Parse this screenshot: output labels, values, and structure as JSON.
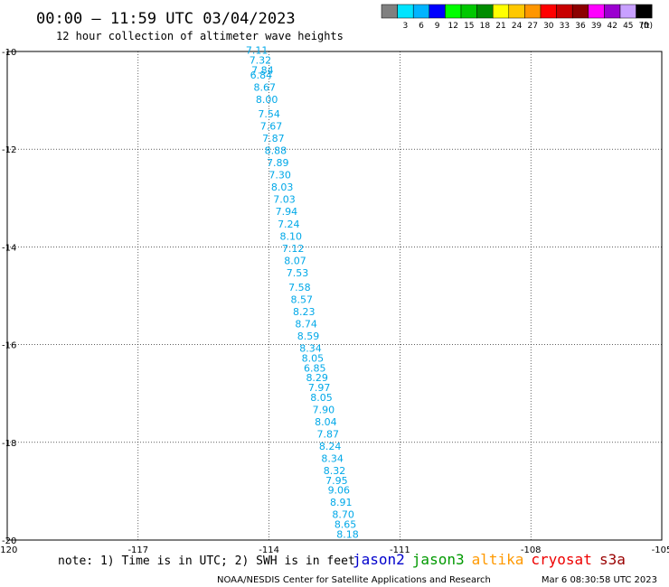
{
  "header": {
    "title": "00:00 – 11:59 UTC 03/04/2023",
    "subtitle": "12 hour collection of altimeter wave heights"
  },
  "colorbar": {
    "unit": "(ft)",
    "segments": [
      {
        "label": "",
        "color": "#808080"
      },
      {
        "label": "3",
        "color": "#00e4ff"
      },
      {
        "label": "6",
        "color": "#00b4ff"
      },
      {
        "label": "9",
        "color": "#0000ff"
      },
      {
        "label": "12",
        "color": "#00ff00"
      },
      {
        "label": "15",
        "color": "#00c800"
      },
      {
        "label": "18",
        "color": "#008c00"
      },
      {
        "label": "21",
        "color": "#ffff00"
      },
      {
        "label": "24",
        "color": "#ffc800"
      },
      {
        "label": "27",
        "color": "#ff9600"
      },
      {
        "label": "30",
        "color": "#ff0000"
      },
      {
        "label": "33",
        "color": "#c80000"
      },
      {
        "label": "36",
        "color": "#8c0000"
      },
      {
        "label": "39",
        "color": "#ff00ff"
      },
      {
        "label": "42",
        "color": "#9b00d0"
      },
      {
        "label": "45",
        "color": "#c8a0ff"
      },
      {
        "label": "70",
        "color": "#000000"
      }
    ]
  },
  "footer": {
    "note": "note: 1) Time is in UTC; 2) SWH is in feet",
    "credit": "NOAA/NESDIS Center for Satellite Applications and Research",
    "timestamp": "Mar  6 08:30:58 UTC 2023",
    "satellites": [
      {
        "name": "jason2",
        "color": "#0000cc"
      },
      {
        "name": "jason3",
        "color": "#009900"
      },
      {
        "name": "altika",
        "color": "#ff9900"
      },
      {
        "name": "cryosat",
        "color": "#ee0000"
      },
      {
        "name": "s3a",
        "color": "#990000"
      }
    ]
  },
  "chart_data": {
    "type": "scatter",
    "title": "00:00 – 11:59 UTC 03/04/2023",
    "subtitle": "12 hour collection of altimeter wave heights",
    "xlim": [
      -120,
      -105
    ],
    "ylim": [
      -20,
      -10
    ],
    "xticks": [
      {
        "value": -120,
        "label": "-120"
      },
      {
        "value": -117,
        "label": "-117"
      },
      {
        "value": -114,
        "label": "-114"
      },
      {
        "value": -111,
        "label": "-111"
      },
      {
        "value": -108,
        "label": "-108"
      },
      {
        "value": -105,
        "label": "-105"
      }
    ],
    "yticks": [
      {
        "value": -10,
        "label": "-10"
      },
      {
        "value": -12,
        "label": "-12"
      },
      {
        "value": -14,
        "label": "-14"
      },
      {
        "value": -16,
        "label": "-16"
      },
      {
        "value": -18,
        "label": "-18"
      },
      {
        "value": -20,
        "label": "-20"
      }
    ],
    "grid": true,
    "legend": "bottom",
    "colors": {
      "swh": "#00a8e8",
      "swh_high": "#0000cc"
    },
    "tracks": [
      {
        "sat": "s3a",
        "color": "#c800c8",
        "points": [
          [
            -114.28,
            -10.05,
            "7.11"
          ],
          [
            -114.2,
            -10.25,
            "7.32"
          ],
          [
            -114.15,
            -10.45,
            "7.84"
          ],
          [
            -114.18,
            -10.55,
            "6.84"
          ],
          [
            -114.1,
            -10.8,
            "8.67"
          ],
          [
            -114.05,
            -11.05,
            "8.00"
          ],
          [
            -114.0,
            -11.35,
            "7.54"
          ],
          [
            -113.95,
            -11.6,
            "7.67"
          ],
          [
            -113.9,
            -11.85,
            "7.87"
          ],
          [
            -113.85,
            -12.1,
            "8.88"
          ],
          [
            -113.8,
            -12.35,
            "7.89"
          ],
          [
            -113.75,
            -12.6,
            "7.30"
          ],
          [
            -113.7,
            -12.85,
            "8.03"
          ],
          [
            -113.65,
            -13.1,
            "7.03"
          ],
          [
            -113.6,
            -13.35,
            "7.94"
          ],
          [
            -113.55,
            -13.6,
            "7.24"
          ],
          [
            -113.5,
            -13.85,
            "8.10"
          ],
          [
            -113.45,
            -14.1,
            "7.12"
          ],
          [
            -113.4,
            -14.35,
            "8.07"
          ],
          [
            -113.35,
            -14.6,
            "7.53"
          ],
          [
            -113.3,
            -14.9,
            "7.58"
          ],
          [
            -113.25,
            -15.15,
            "8.57"
          ],
          [
            -113.2,
            -15.4,
            "8.23"
          ],
          [
            -113.15,
            -15.65,
            "8.74"
          ],
          [
            -113.1,
            -15.9,
            "8.59"
          ],
          [
            -113.05,
            -16.15,
            "8.34"
          ],
          [
            -113.0,
            -16.35,
            "8.05"
          ],
          [
            -112.95,
            -16.55,
            "6.85"
          ],
          [
            -112.9,
            -16.75,
            "8.29"
          ],
          [
            -112.85,
            -16.95,
            "7.97"
          ],
          [
            -112.8,
            -17.15,
            "8.05"
          ],
          [
            -112.75,
            -17.4,
            "7.90"
          ],
          [
            -112.7,
            -17.65,
            "8.04"
          ],
          [
            -112.65,
            -17.9,
            "7.87"
          ],
          [
            -112.6,
            -18.15,
            "8.24"
          ],
          [
            -112.55,
            -18.4,
            "8.34"
          ],
          [
            -112.5,
            -18.65,
            "8.32"
          ],
          [
            -112.45,
            -18.85,
            "7.95"
          ],
          [
            -112.4,
            -19.05,
            "9.06"
          ],
          [
            -112.35,
            -19.3,
            "8.91"
          ],
          [
            -112.3,
            -19.55,
            "8.70"
          ],
          [
            -112.25,
            -19.75,
            "8.65"
          ],
          [
            -112.2,
            -19.95,
            "8.18"
          ]
        ]
      }
    ],
    "labels_note": "see plotted values"
  }
}
